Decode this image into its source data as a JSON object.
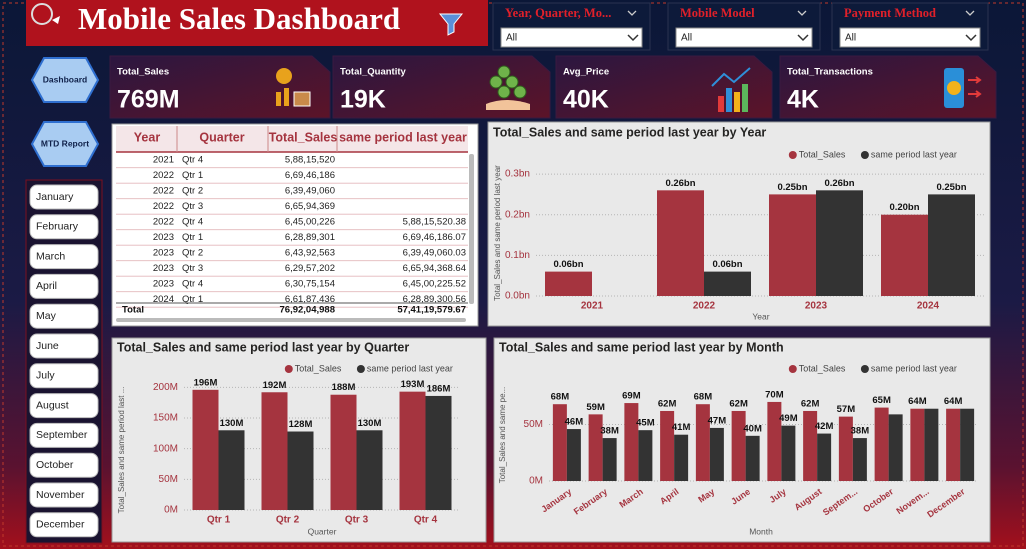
{
  "header": {
    "title": "Mobile Sales Dashboard"
  },
  "filters": [
    {
      "label": "Year, Quarter, Mo...",
      "value": "All"
    },
    {
      "label": "Mobile Model",
      "value": "All"
    },
    {
      "label": "Payment Method",
      "value": "All"
    }
  ],
  "nav": [
    "Dashboard",
    "MTD Report"
  ],
  "months": [
    "January",
    "February",
    "March",
    "April",
    "May",
    "June",
    "July",
    "August",
    "September",
    "October",
    "November",
    "December"
  ],
  "kpis": [
    {
      "label": "Total_Sales",
      "value": "769M"
    },
    {
      "label": "Total_Quantity",
      "value": "19K"
    },
    {
      "label": "Avg_Price",
      "value": "40K"
    },
    {
      "label": "Total_Transactions",
      "value": "4K"
    }
  ],
  "table": {
    "columns": [
      "Year",
      "Quarter",
      "Total_Sales",
      "same period last year"
    ],
    "rows": [
      [
        "2021",
        "Qtr 4",
        "5,88,15,520",
        null
      ],
      [
        "2022",
        "Qtr 1",
        "6,69,46,186",
        null
      ],
      [
        "2022",
        "Qtr 2",
        "6,39,49,060",
        null
      ],
      [
        "2022",
        "Qtr 3",
        "6,65,94,369",
        null
      ],
      [
        "2022",
        "Qtr 4",
        "6,45,00,226",
        "5,88,15,520.38"
      ],
      [
        "2023",
        "Qtr 1",
        "6,28,89,301",
        "6,69,46,186.07"
      ],
      [
        "2023",
        "Qtr 2",
        "6,43,92,563",
        "6,39,49,060.03"
      ],
      [
        "2023",
        "Qtr 3",
        "6,29,57,202",
        "6,65,94,368.64"
      ],
      [
        "2023",
        "Qtr 4",
        "6,30,75,154",
        "6,45,00,225.52"
      ],
      [
        "2024",
        "Qtr 1",
        "6,61,87,436",
        "6,28,89,300.56"
      ]
    ],
    "total": [
      "Total",
      "76,92,04,988",
      "57,41,19,579.67"
    ]
  },
  "chart_data": [
    {
      "type": "bar",
      "title": "Total_Sales and same period last year by Year",
      "x_label": "Year",
      "y_label": "Total_Sales and same period last year",
      "categories": [
        "2021",
        "2022",
        "2023",
        "2024"
      ],
      "series": [
        {
          "name": "Total_Sales",
          "color": "#a5343f",
          "values": [
            0.06,
            0.26,
            0.25,
            0.2
          ],
          "value_labels": [
            "0.06bn",
            "0.26bn",
            "0.25bn",
            "0.20bn"
          ]
        },
        {
          "name": "same period last year",
          "color": "#333333",
          "values": [
            null,
            0.06,
            0.26,
            0.25
          ],
          "value_labels": [
            null,
            "0.06bn",
            "0.26bn",
            "0.25bn"
          ]
        }
      ],
      "ylim": [
        0,
        0.31
      ],
      "yticks": [
        {
          "value": 0,
          "label": "0.0bn"
        },
        {
          "value": 0.1,
          "label": "0.1bn"
        },
        {
          "value": 0.2,
          "label": "0.2bn"
        },
        {
          "value": 0.3,
          "label": "0.3bn"
        }
      ],
      "grid": true,
      "legend": "top-right"
    },
    {
      "type": "bar",
      "title": "Total_Sales and same period last year by Quarter",
      "x_label": "Quarter",
      "y_label": "Total_Sales and same period last ...",
      "categories": [
        "Qtr 1",
        "Qtr 2",
        "Qtr 3",
        "Qtr 4"
      ],
      "series": [
        {
          "name": "Total_Sales",
          "color": "#a5343f",
          "values": [
            196,
            192,
            188,
            193
          ],
          "value_labels": [
            "196M",
            "192M",
            "188M",
            "193M"
          ]
        },
        {
          "name": "same period last year",
          "color": "#333333",
          "values": [
            130,
            128,
            130,
            186
          ],
          "value_labels": [
            "130M",
            "128M",
            "130M",
            "186M"
          ]
        }
      ],
      "ylim": [
        0,
        212
      ],
      "yticks": [
        {
          "value": 0,
          "label": "0M"
        },
        {
          "value": 50,
          "label": "50M"
        },
        {
          "value": 100,
          "label": "100M"
        },
        {
          "value": 150,
          "label": "150M"
        },
        {
          "value": 200,
          "label": "200M"
        }
      ],
      "grid": true,
      "legend": "top-right"
    },
    {
      "type": "bar",
      "title": "Total_Sales and same period last year by Month",
      "x_label": "Month",
      "y_label": "Total_Sales and same pe...",
      "categories": [
        "January",
        "February",
        "March",
        "April",
        "May",
        "June",
        "July",
        "August",
        "Septem...",
        "October",
        "Novem...",
        "December"
      ],
      "series": [
        {
          "name": "Total_Sales",
          "color": "#a5343f",
          "values": [
            68,
            59,
            69,
            62,
            68,
            62,
            70,
            62,
            57,
            65,
            64,
            64
          ],
          "value_labels": [
            "68M",
            "59M",
            "69M",
            "62M",
            "68M",
            "62M",
            "70M",
            "62M",
            "57M",
            "65M",
            "64M",
            "64M"
          ]
        },
        {
          "name": "same period last year",
          "color": "#333333",
          "values": [
            46,
            38,
            45,
            41,
            47,
            40,
            49,
            42,
            38,
            59,
            64,
            64
          ],
          "value_labels": [
            "46M",
            "38M",
            "45M",
            "41M",
            "47M",
            "40M",
            "49M",
            "42M",
            "38M",
            null,
            null,
            null
          ]
        }
      ],
      "ylim": [
        0,
        85
      ],
      "yticks": [
        {
          "value": 0,
          "label": "0M"
        },
        {
          "value": 50,
          "label": "50M"
        }
      ],
      "grid": true,
      "legend": "top-right"
    }
  ]
}
